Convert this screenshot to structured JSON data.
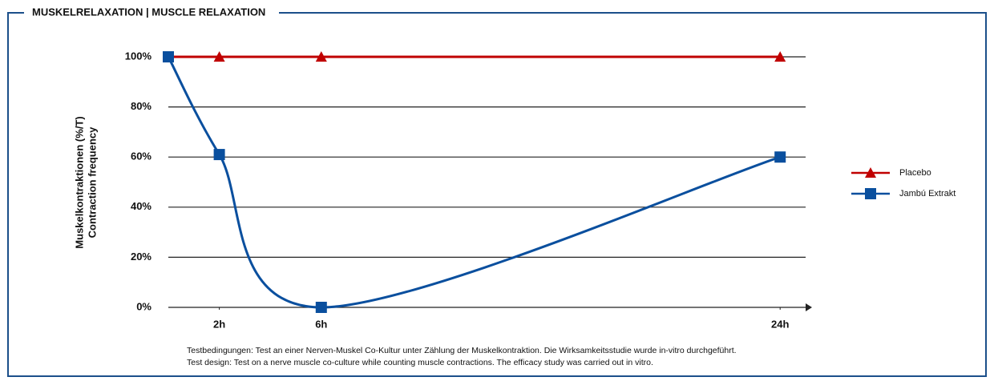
{
  "chart_data": {
    "type": "line",
    "title": "MUSKELRELAXATION | MUSCLE RELAXATION",
    "y_label": [
      "Muskelkontraktionen (%/T)",
      "Contraction frequency"
    ],
    "x": [
      0,
      2,
      6,
      24
    ],
    "xlim": [
      0,
      25
    ],
    "xticks": [
      {
        "value": 2,
        "label": "2h"
      },
      {
        "value": 6,
        "label": "6h"
      },
      {
        "value": 24,
        "label": "24h"
      }
    ],
    "ylim": [
      0,
      100
    ],
    "yticks": [
      {
        "value": 0,
        "label": "0%"
      },
      {
        "value": 20,
        "label": "20%"
      },
      {
        "value": 40,
        "label": "40%"
      },
      {
        "value": 60,
        "label": "60%"
      },
      {
        "value": 80,
        "label": "80%"
      },
      {
        "value": 100,
        "label": "100%"
      }
    ],
    "grid": true,
    "legend": "right",
    "series": [
      {
        "name": "Placebo",
        "color": "#c00000",
        "marker": "triangle",
        "smooth": false,
        "values": [
          100,
          100,
          100,
          100
        ]
      },
      {
        "name": "Jambú Extrakt",
        "color": "#0a4f9e",
        "marker": "square",
        "smooth": true,
        "values": [
          100,
          61,
          0,
          60
        ]
      }
    ],
    "footnote": [
      "Testbedingungen: Test an einer Nerven-Muskel Co-Kultur unter Zählung der Muskelkontraktion. Die Wirksamkeitsstudie wurde in-vitro durchgeführt.",
      "Test design: Test on a nerve muscle co-culture while counting muscle contractions. The efficacy study was carried out in vitro."
    ]
  }
}
